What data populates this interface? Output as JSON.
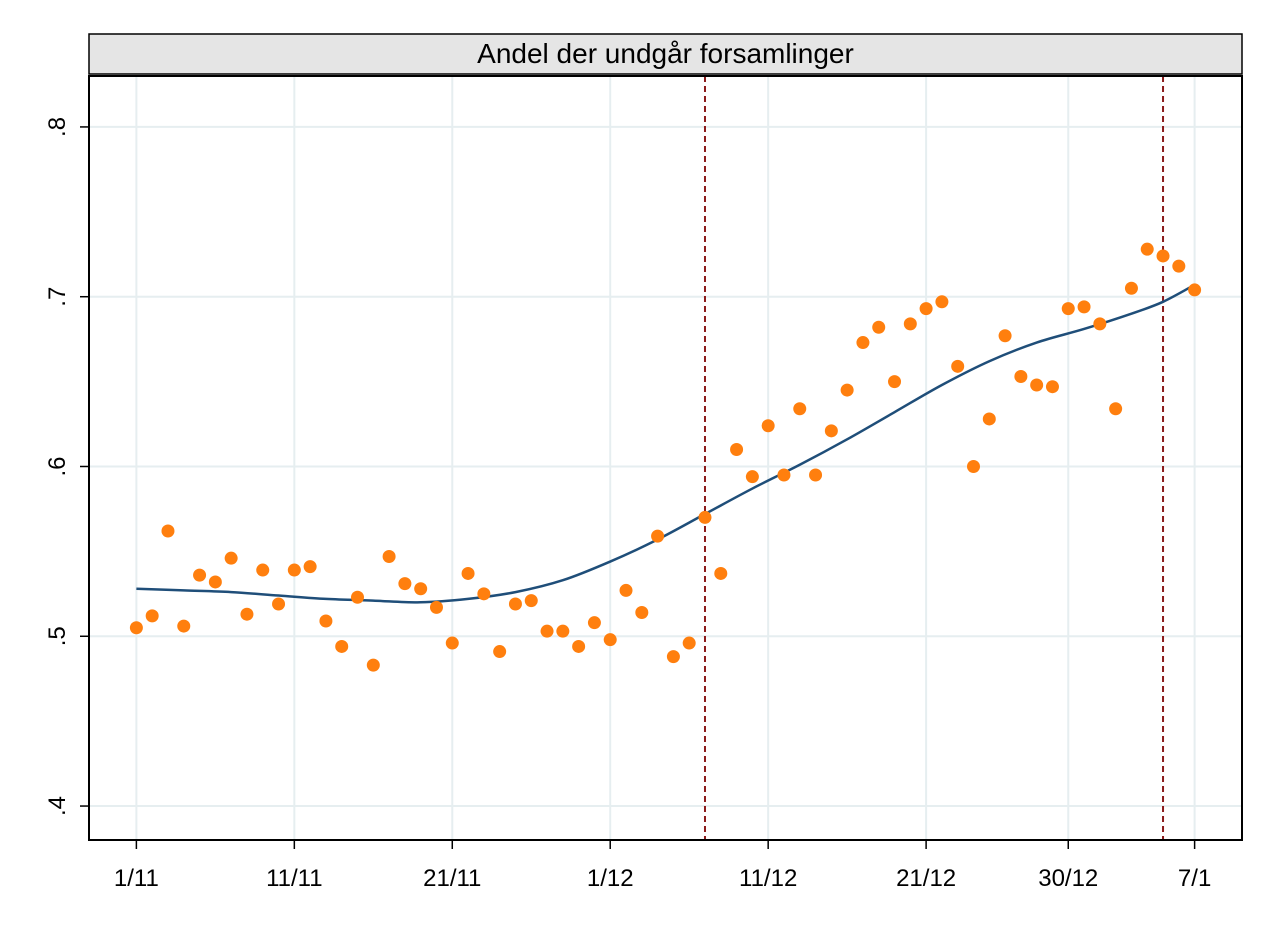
{
  "chart_data": {
    "type": "scatter",
    "title": "Andel der undgår forsamlinger",
    "xlabel": "",
    "ylabel": "",
    "x_ticks": [
      "1/11",
      "11/11",
      "21/11",
      "1/12",
      "11/12",
      "21/12",
      "30/12",
      "7/1"
    ],
    "x_tick_dates": [
      "2020-11-01",
      "2020-11-11",
      "2020-11-21",
      "2020-12-01",
      "2020-12-11",
      "2020-12-21",
      "2020-12-30",
      "2021-01-07"
    ],
    "y_ticks": [
      ".4",
      ".5",
      ".6",
      ".7",
      ".8"
    ],
    "y_tick_values": [
      0.4,
      0.5,
      0.6,
      0.7,
      0.8
    ],
    "ylim": [
      0.38,
      0.83
    ],
    "xlim": [
      "2020-10-29",
      "2021-01-10"
    ],
    "grid": true,
    "vlines": [
      "2020-12-07",
      "2021-01-05"
    ],
    "series": [
      {
        "type": "scatter",
        "color": "#ff7f0e",
        "points": [
          [
            "2020-11-01",
            0.505
          ],
          [
            "2020-11-02",
            0.512
          ],
          [
            "2020-11-03",
            0.562
          ],
          [
            "2020-11-04",
            0.506
          ],
          [
            "2020-11-05",
            0.536
          ],
          [
            "2020-11-06",
            0.532
          ],
          [
            "2020-11-07",
            0.546
          ],
          [
            "2020-11-08",
            0.513
          ],
          [
            "2020-11-09",
            0.539
          ],
          [
            "2020-11-10",
            0.519
          ],
          [
            "2020-11-11",
            0.539
          ],
          [
            "2020-11-12",
            0.541
          ],
          [
            "2020-11-13",
            0.509
          ],
          [
            "2020-11-14",
            0.494
          ],
          [
            "2020-11-15",
            0.523
          ],
          [
            "2020-11-16",
            0.483
          ],
          [
            "2020-11-17",
            0.547
          ],
          [
            "2020-11-18",
            0.531
          ],
          [
            "2020-11-19",
            0.528
          ],
          [
            "2020-11-20",
            0.517
          ],
          [
            "2020-11-21",
            0.496
          ],
          [
            "2020-11-22",
            0.537
          ],
          [
            "2020-11-23",
            0.525
          ],
          [
            "2020-11-24",
            0.491
          ],
          [
            "2020-11-25",
            0.519
          ],
          [
            "2020-11-26",
            0.521
          ],
          [
            "2020-11-27",
            0.503
          ],
          [
            "2020-11-28",
            0.503
          ],
          [
            "2020-11-29",
            0.494
          ],
          [
            "2020-11-30",
            0.508
          ],
          [
            "2020-12-01",
            0.498
          ],
          [
            "2020-12-02",
            0.527
          ],
          [
            "2020-12-03",
            0.514
          ],
          [
            "2020-12-04",
            0.559
          ],
          [
            "2020-12-05",
            0.488
          ],
          [
            "2020-12-06",
            0.496
          ],
          [
            "2020-12-07",
            0.57
          ],
          [
            "2020-12-08",
            0.537
          ],
          [
            "2020-12-09",
            0.61
          ],
          [
            "2020-12-10",
            0.594
          ],
          [
            "2020-12-11",
            0.624
          ],
          [
            "2020-12-12",
            0.595
          ],
          [
            "2020-12-13",
            0.634
          ],
          [
            "2020-12-14",
            0.595
          ],
          [
            "2020-12-15",
            0.621
          ],
          [
            "2020-12-16",
            0.645
          ],
          [
            "2020-12-17",
            0.673
          ],
          [
            "2020-12-18",
            0.682
          ],
          [
            "2020-12-19",
            0.65
          ],
          [
            "2020-12-20",
            0.684
          ],
          [
            "2020-12-21",
            0.693
          ],
          [
            "2020-12-22",
            0.697
          ],
          [
            "2020-12-23",
            0.659
          ],
          [
            "2020-12-24",
            0.6
          ],
          [
            "2020-12-25",
            0.628
          ],
          [
            "2020-12-26",
            0.677
          ],
          [
            "2020-12-27",
            0.653
          ],
          [
            "2020-12-28",
            0.648
          ],
          [
            "2020-12-29",
            0.647
          ],
          [
            "2020-12-30",
            0.693
          ],
          [
            "2020-12-31",
            0.694
          ],
          [
            "2021-01-01",
            0.684
          ],
          [
            "2021-01-02",
            0.634
          ],
          [
            "2021-01-03",
            0.705
          ],
          [
            "2021-01-04",
            0.728
          ],
          [
            "2021-01-05",
            0.724
          ],
          [
            "2021-01-06",
            0.718
          ],
          [
            "2021-01-07",
            0.704
          ]
        ]
      },
      {
        "type": "line",
        "color": "#1f4e79",
        "points": [
          [
            "2020-11-01",
            0.528
          ],
          [
            "2020-11-04",
            0.527
          ],
          [
            "2020-11-07",
            0.526
          ],
          [
            "2020-11-10",
            0.524
          ],
          [
            "2020-11-13",
            0.522
          ],
          [
            "2020-11-16",
            0.521
          ],
          [
            "2020-11-19",
            0.52
          ],
          [
            "2020-11-22",
            0.522
          ],
          [
            "2020-11-25",
            0.526
          ],
          [
            "2020-11-28",
            0.533
          ],
          [
            "2020-12-01",
            0.544
          ],
          [
            "2020-12-04",
            0.557
          ],
          [
            "2020-12-07",
            0.572
          ],
          [
            "2020-12-10",
            0.587
          ],
          [
            "2020-12-13",
            0.601
          ],
          [
            "2020-12-16",
            0.616
          ],
          [
            "2020-12-19",
            0.632
          ],
          [
            "2020-12-22",
            0.648
          ],
          [
            "2020-12-25",
            0.662
          ],
          [
            "2020-12-28",
            0.673
          ],
          [
            "2020-12-31",
            0.681
          ],
          [
            "2021-01-03",
            0.69
          ],
          [
            "2021-01-05",
            0.697
          ],
          [
            "2021-01-07",
            0.707
          ]
        ]
      }
    ]
  },
  "colors": {
    "marker": "#ff7f0e",
    "fit_line": "#1f4e79",
    "vline": "#8b1a1a",
    "grid": "#e6eef0",
    "title_bg": "#e5e5e5"
  }
}
